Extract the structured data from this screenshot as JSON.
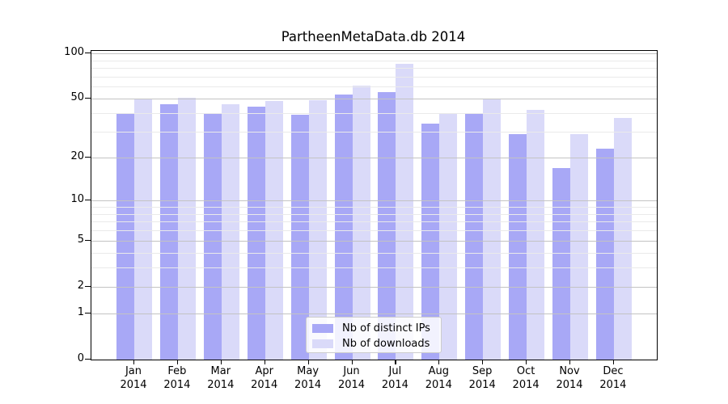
{
  "title": "PartheenMetaData.db 2014",
  "chart_data": {
    "type": "bar",
    "title": "PartheenMetaData.db 2014",
    "year_label": "2014",
    "categories": [
      "Jan",
      "Feb",
      "Mar",
      "Apr",
      "May",
      "Jun",
      "Jul",
      "Aug",
      "Sep",
      "Oct",
      "Nov",
      "Dec"
    ],
    "series": [
      {
        "name": "Nb of distinct IPs",
        "color": "#a8a8f6",
        "values": [
          40,
          46,
          40,
          44,
          39,
          53,
          55,
          34,
          40,
          29,
          17,
          23
        ]
      },
      {
        "name": "Nb of downloads",
        "color": "#dadaf9",
        "values": [
          50,
          51,
          46,
          48,
          49,
          61,
          85,
          40,
          50,
          42,
          29,
          37
        ]
      }
    ],
    "yscale": "log1p",
    "ylim": [
      0,
      100
    ],
    "yticks": [
      0,
      1,
      2,
      5,
      10,
      20,
      50,
      100
    ],
    "minor_gridlines": [
      3,
      4,
      6,
      7,
      8,
      9,
      30,
      40,
      60,
      70,
      80,
      90
    ],
    "grid": true,
    "legend_position": "lower center"
  },
  "colors": {
    "major_grid": "#c3c3c3",
    "minor_grid": "#eaeaea",
    "axis": "#000000",
    "legend_border": "#cccccc",
    "background": "#ffffff"
  }
}
